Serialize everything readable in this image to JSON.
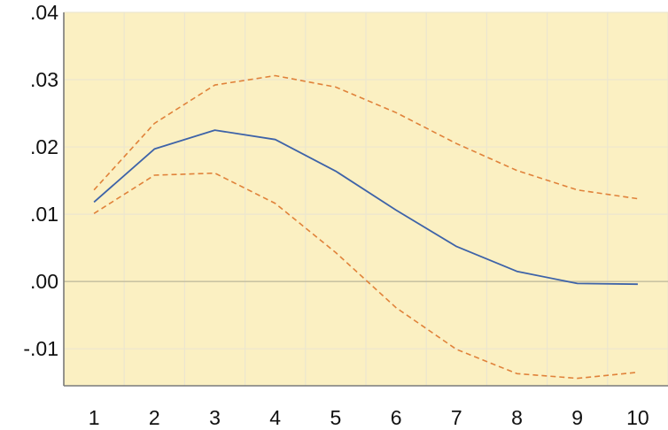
{
  "chart_data": {
    "type": "line",
    "title": "",
    "xlabel": "",
    "ylabel": "",
    "x": [
      1,
      2,
      3,
      4,
      5,
      6,
      7,
      8,
      9,
      10
    ],
    "x_tick_labels": [
      "1",
      "2",
      "3",
      "4",
      "5",
      "6",
      "7",
      "8",
      "9",
      "10"
    ],
    "y_ticks": [
      -0.01,
      0.0,
      0.01,
      0.02,
      0.03,
      0.04
    ],
    "y_tick_labels": [
      "-.01",
      ".00",
      ".01",
      ".02",
      ".03",
      ".04"
    ],
    "ylim": [
      -0.0155,
      0.04
    ],
    "xlim": [
      0.5,
      10.5
    ],
    "grid": true,
    "legend": "none",
    "background_color": "#fbf0c2",
    "grid_color": "#ece6cf",
    "zero_line_color": "#c9c3a3",
    "series": [
      {
        "values": [
          0.0118,
          0.0197,
          0.0225,
          0.0211,
          0.0164,
          0.0106,
          0.0052,
          0.0015,
          -0.0003,
          -0.0004
        ],
        "color": "#3e63a8",
        "style": "solid"
      },
      {
        "values": [
          0.0136,
          0.0235,
          0.0292,
          0.0306,
          0.0289,
          0.0251,
          0.0205,
          0.0165,
          0.0136,
          0.0123
        ],
        "color": "#e0823a",
        "style": "dashed"
      },
      {
        "values": [
          0.0101,
          0.0158,
          0.0161,
          0.0116,
          0.0043,
          -0.0039,
          -0.0101,
          -0.0137,
          -0.0144,
          -0.0135
        ],
        "color": "#e0823a",
        "style": "dashed"
      }
    ]
  }
}
